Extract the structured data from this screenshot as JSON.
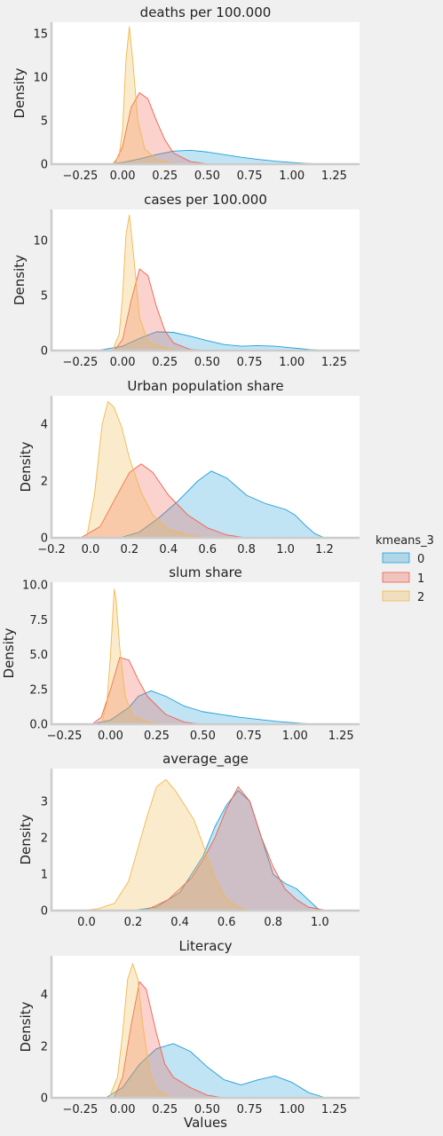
{
  "legend": {
    "title": "kmeans_3",
    "labels": [
      "0",
      "1",
      "2"
    ]
  },
  "colors": {
    "series_0": "#1f9ed8",
    "series_1": "#f25f4c",
    "series_2": "#f2b84b",
    "background": "#f0f0f0",
    "panel": "#ffffff",
    "axis": "#cccccc"
  },
  "chart_data": [
    {
      "type": "area",
      "title": "deaths per 100.000",
      "xlabel": "",
      "ylabel": "Density",
      "xlim": [
        -0.42,
        1.4
      ],
      "ylim": [
        0,
        16.3
      ],
      "xticks": [
        -0.25,
        0.0,
        0.25,
        0.5,
        0.75,
        1.0,
        1.25
      ],
      "xtick_labels": [
        "−0.25",
        "0.00",
        "0.25",
        "0.50",
        "0.75",
        "1.00",
        "1.25"
      ],
      "yticks": [
        0,
        5,
        10,
        15
      ],
      "ytick_labels": [
        "0",
        "5",
        "10",
        "15"
      ],
      "grid": false,
      "series": [
        {
          "name": "0",
          "x": [
            -0.1,
            0.0,
            0.1,
            0.2,
            0.3,
            0.4,
            0.5,
            0.6,
            0.7,
            0.8,
            0.9,
            1.0,
            1.1,
            1.2
          ],
          "y": [
            0,
            0.2,
            0.6,
            1.1,
            1.5,
            1.6,
            1.4,
            1.1,
            0.8,
            0.55,
            0.35,
            0.2,
            0.08,
            0
          ]
        },
        {
          "name": "1",
          "x": [
            -0.05,
            0.0,
            0.05,
            0.1,
            0.15,
            0.2,
            0.25,
            0.3,
            0.4,
            0.5,
            0.6
          ],
          "y": [
            0,
            2.0,
            6.5,
            8.2,
            7.5,
            5.0,
            2.8,
            1.3,
            0.3,
            0.05,
            0
          ]
        },
        {
          "name": "2",
          "x": [
            -0.06,
            -0.02,
            0.0,
            0.02,
            0.04,
            0.06,
            0.09,
            0.13,
            0.2,
            0.3,
            0.4
          ],
          "y": [
            0,
            1.0,
            4.0,
            12.0,
            15.8,
            12.0,
            5.0,
            1.8,
            0.5,
            0.1,
            0
          ]
        }
      ]
    },
    {
      "type": "area",
      "title": "cases per 100.000",
      "xlabel": "",
      "ylabel": "Density",
      "xlim": [
        -0.42,
        1.4
      ],
      "ylim": [
        0,
        12.8
      ],
      "xticks": [
        -0.25,
        0.0,
        0.25,
        0.5,
        0.75,
        1.0,
        1.25
      ],
      "xtick_labels": [
        "−0.25",
        "0.00",
        "0.25",
        "0.50",
        "0.75",
        "1.00",
        "1.25"
      ],
      "yticks": [
        0,
        5,
        10
      ],
      "ytick_labels": [
        "0",
        "5",
        "10"
      ],
      "grid": false,
      "series": [
        {
          "name": "0",
          "x": [
            -0.15,
            0.0,
            0.1,
            0.2,
            0.3,
            0.4,
            0.5,
            0.6,
            0.7,
            0.8,
            0.9,
            1.0,
            1.1,
            1.2
          ],
          "y": [
            0,
            0.4,
            1.1,
            1.7,
            1.65,
            1.3,
            0.9,
            0.55,
            0.4,
            0.45,
            0.4,
            0.25,
            0.1,
            0
          ]
        },
        {
          "name": "1",
          "x": [
            -0.05,
            0.0,
            0.05,
            0.1,
            0.15,
            0.2,
            0.25,
            0.3,
            0.4,
            0.5
          ],
          "y": [
            0,
            1.0,
            4.5,
            7.4,
            6.8,
            4.0,
            1.8,
            0.7,
            0.1,
            0
          ]
        },
        {
          "name": "2",
          "x": [
            -0.06,
            -0.02,
            0.0,
            0.02,
            0.04,
            0.06,
            0.1,
            0.15,
            0.25,
            0.35
          ],
          "y": [
            0,
            1.5,
            5.0,
            10.5,
            12.3,
            9.5,
            3.0,
            0.8,
            0.2,
            0
          ]
        }
      ]
    },
    {
      "type": "area",
      "title": "Urban population share",
      "xlabel": "",
      "ylabel": "Density",
      "xlim": [
        -0.2,
        1.38
      ],
      "ylim": [
        0,
        5.0
      ],
      "xticks": [
        -0.2,
        0.0,
        0.2,
        0.4,
        0.6,
        0.8,
        1.0,
        1.2
      ],
      "xtick_labels": [
        "−0.2",
        "0.0",
        "0.2",
        "0.4",
        "0.6",
        "0.8",
        "1.0",
        "1.2"
      ],
      "yticks": [
        0,
        2,
        4
      ],
      "ytick_labels": [
        "0",
        "2",
        "4"
      ],
      "grid": false,
      "series": [
        {
          "name": "0",
          "x": [
            0.15,
            0.25,
            0.35,
            0.45,
            0.55,
            0.62,
            0.7,
            0.8,
            0.9,
            1.0,
            1.05,
            1.1,
            1.15,
            1.2
          ],
          "y": [
            0,
            0.2,
            0.7,
            1.3,
            2.0,
            2.35,
            2.1,
            1.5,
            1.2,
            1.0,
            0.8,
            0.45,
            0.15,
            0
          ]
        },
        {
          "name": "1",
          "x": [
            -0.05,
            0.05,
            0.12,
            0.2,
            0.26,
            0.32,
            0.4,
            0.5,
            0.6,
            0.7,
            0.8
          ],
          "y": [
            0,
            0.4,
            1.3,
            2.3,
            2.6,
            2.3,
            1.5,
            0.8,
            0.35,
            0.1,
            0
          ]
        },
        {
          "name": "2",
          "x": [
            -0.02,
            0.02,
            0.06,
            0.09,
            0.12,
            0.16,
            0.2,
            0.26,
            0.32,
            0.4,
            0.5,
            0.6
          ],
          "y": [
            0,
            1.5,
            4.0,
            4.8,
            4.6,
            3.9,
            2.8,
            1.6,
            0.8,
            0.3,
            0.1,
            0
          ]
        }
      ]
    },
    {
      "type": "area",
      "title": "slum share",
      "xlabel": "",
      "ylabel": "Density",
      "xlim": [
        -0.32,
        1.35
      ],
      "ylim": [
        0,
        10.2
      ],
      "xticks": [
        -0.25,
        0.0,
        0.25,
        0.5,
        0.75,
        1.0,
        1.25
      ],
      "xtick_labels": [
        "−0.25",
        "0.00",
        "0.25",
        "0.50",
        "0.75",
        "1.00",
        "1.25"
      ],
      "yticks": [
        0,
        2.5,
        5.0,
        7.5,
        10.0
      ],
      "ytick_labels": [
        "0.0",
        "2.5",
        "5.0",
        "7.5",
        "10.0"
      ],
      "grid": false,
      "series": [
        {
          "name": "0",
          "x": [
            -0.1,
            0.0,
            0.1,
            0.15,
            0.22,
            0.3,
            0.4,
            0.5,
            0.6,
            0.7,
            0.8,
            0.9,
            1.0,
            1.1
          ],
          "y": [
            0,
            0.3,
            1.2,
            2.0,
            2.4,
            2.0,
            1.3,
            0.9,
            0.7,
            0.5,
            0.35,
            0.2,
            0.1,
            0
          ]
        },
        {
          "name": "1",
          "x": [
            -0.1,
            -0.05,
            0.0,
            0.05,
            0.1,
            0.15,
            0.2,
            0.3,
            0.4,
            0.5
          ],
          "y": [
            0,
            0.5,
            2.5,
            4.8,
            4.6,
            3.2,
            2.0,
            0.7,
            0.15,
            0
          ]
        },
        {
          "name": "2",
          "x": [
            -0.05,
            -0.02,
            0.0,
            0.02,
            0.03,
            0.05,
            0.08,
            0.12,
            0.2,
            0.3
          ],
          "y": [
            0,
            1.5,
            5.0,
            9.7,
            9.0,
            5.5,
            2.0,
            0.6,
            0.15,
            0
          ]
        }
      ]
    },
    {
      "type": "area",
      "title": "average_age",
      "xlabel": "",
      "ylabel": "Density",
      "xlim": [
        -0.15,
        1.17
      ],
      "ylim": [
        0,
        3.9
      ],
      "xticks": [
        0.0,
        0.2,
        0.4,
        0.6,
        0.8,
        1.0
      ],
      "xtick_labels": [
        "0.0",
        "0.2",
        "0.4",
        "0.6",
        "0.8",
        "1.0"
      ],
      "yticks": [
        0,
        1,
        2,
        3
      ],
      "ytick_labels": [
        "0",
        "1",
        "2",
        "3"
      ],
      "grid": false,
      "series": [
        {
          "name": "0",
          "x": [
            0.2,
            0.3,
            0.4,
            0.5,
            0.55,
            0.6,
            0.65,
            0.7,
            0.75,
            0.8,
            0.85,
            0.9,
            0.95,
            1.0
          ],
          "y": [
            0,
            0.1,
            0.5,
            1.5,
            2.3,
            2.9,
            3.3,
            3.0,
            2.0,
            1.0,
            0.75,
            0.6,
            0.3,
            0
          ]
        },
        {
          "name": "1",
          "x": [
            0.25,
            0.35,
            0.45,
            0.5,
            0.55,
            0.6,
            0.65,
            0.7,
            0.75,
            0.8,
            0.85,
            0.9,
            0.95,
            1.03
          ],
          "y": [
            0,
            0.3,
            0.9,
            1.4,
            2.0,
            2.8,
            3.4,
            3.0,
            2.0,
            1.2,
            0.6,
            0.3,
            0.1,
            0
          ]
        },
        {
          "name": "2",
          "x": [
            -0.02,
            0.05,
            0.12,
            0.18,
            0.22,
            0.26,
            0.3,
            0.34,
            0.38,
            0.42,
            0.46,
            0.5,
            0.55,
            0.6,
            0.65,
            0.7
          ],
          "y": [
            0,
            0.05,
            0.2,
            0.8,
            1.7,
            2.6,
            3.4,
            3.6,
            3.3,
            2.9,
            2.5,
            1.8,
            0.9,
            0.3,
            0.1,
            0
          ]
        }
      ]
    },
    {
      "type": "area",
      "title": "Literacy",
      "xlabel": "Values",
      "ylabel": "Density",
      "xlim": [
        -0.42,
        1.4
      ],
      "ylim": [
        0,
        5.5
      ],
      "xticks": [
        -0.25,
        0.0,
        0.25,
        0.5,
        0.75,
        1.0,
        1.25
      ],
      "xtick_labels": [
        "−0.25",
        "0.00",
        "0.25",
        "0.50",
        "0.75",
        "1.00",
        "1.25"
      ],
      "yticks": [
        0,
        2,
        4
      ],
      "ytick_labels": [
        "0",
        "2",
        "4"
      ],
      "grid": false,
      "series": [
        {
          "name": "0",
          "x": [
            -0.1,
            0.0,
            0.1,
            0.2,
            0.3,
            0.4,
            0.5,
            0.6,
            0.7,
            0.8,
            0.9,
            1.0,
            1.1,
            1.2
          ],
          "y": [
            0,
            0.4,
            1.3,
            1.9,
            2.1,
            1.8,
            1.2,
            0.7,
            0.5,
            0.7,
            0.85,
            0.6,
            0.2,
            0
          ]
        },
        {
          "name": "1",
          "x": [
            -0.05,
            0.0,
            0.05,
            0.1,
            0.14,
            0.2,
            0.25,
            0.3,
            0.4,
            0.5,
            0.6
          ],
          "y": [
            0,
            0.8,
            2.8,
            4.5,
            4.2,
            2.5,
            1.3,
            0.8,
            0.4,
            0.1,
            0
          ]
        },
        {
          "name": "2",
          "x": [
            -0.08,
            -0.03,
            0.0,
            0.03,
            0.06,
            0.09,
            0.12,
            0.16,
            0.2,
            0.3
          ],
          "y": [
            0,
            0.8,
            2.5,
            4.6,
            5.2,
            4.6,
            2.8,
            1.0,
            0.3,
            0
          ]
        }
      ]
    }
  ]
}
